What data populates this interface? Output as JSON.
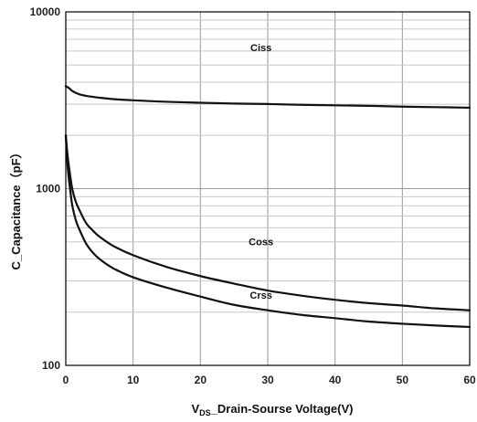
{
  "chart_data": {
    "type": "line",
    "x_axis": {
      "label_prefix": "V",
      "label_subscript": "DS",
      "label_suffix": "_Drain-Sourse Voltage(V)",
      "lim": [
        0,
        60
      ],
      "ticks": [
        0,
        10,
        20,
        30,
        40,
        50,
        60
      ],
      "tick_labels": [
        "0",
        "10",
        "20",
        "30",
        "40",
        "50",
        "60"
      ]
    },
    "y_axis": {
      "label": "C_Capacitance（pF）",
      "scale": "log",
      "lim": [
        100,
        10000
      ],
      "ticks": [
        100,
        1000,
        10000
      ],
      "tick_labels": [
        "100",
        "1000",
        "10000"
      ]
    },
    "grid": true,
    "series": [
      {
        "name": "Ciss",
        "x": [
          0,
          0.5,
          1,
          2,
          3,
          5,
          7,
          10,
          15,
          20,
          25,
          30,
          35,
          40,
          45,
          50,
          55,
          60
        ],
        "y": [
          3800,
          3700,
          3560,
          3420,
          3350,
          3270,
          3210,
          3160,
          3100,
          3060,
          3030,
          3010,
          2980,
          2960,
          2940,
          2910,
          2890,
          2870
        ]
      },
      {
        "name": "Coss",
        "x": [
          0,
          0.3,
          0.7,
          1,
          1.5,
          2,
          3,
          4,
          5,
          7,
          10,
          15,
          20,
          25,
          30,
          35,
          40,
          45,
          50,
          55,
          60
        ],
        "y": [
          2000,
          1500,
          1150,
          980,
          840,
          760,
          640,
          580,
          535,
          475,
          420,
          360,
          320,
          290,
          265,
          248,
          235,
          225,
          218,
          210,
          205
        ]
      },
      {
        "name": "Crss",
        "x": [
          0,
          0.3,
          0.7,
          1,
          1.5,
          2,
          3,
          4,
          5,
          7,
          10,
          15,
          20,
          25,
          30,
          35,
          40,
          45,
          50,
          55,
          60
        ],
        "y": [
          2000,
          1300,
          950,
          790,
          660,
          590,
          490,
          435,
          400,
          355,
          315,
          275,
          245,
          220,
          205,
          193,
          185,
          177,
          172,
          168,
          165
        ]
      }
    ],
    "annotations": [
      {
        "text": "Ciss",
        "x": 29,
        "y": 6300
      },
      {
        "text": "Coss",
        "x": 29,
        "y": 500
      },
      {
        "text": "Crss",
        "x": 29,
        "y": 250
      }
    ]
  }
}
